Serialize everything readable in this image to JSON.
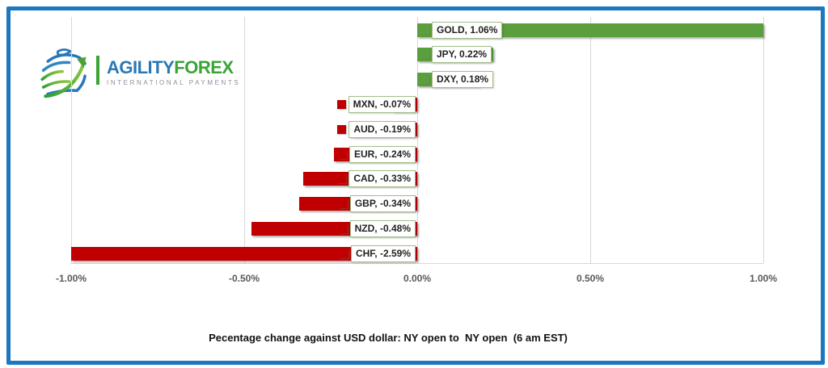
{
  "logo": {
    "brand_primary": "AGILITY",
    "brand_secondary": "FOREX",
    "tagline": "INTERNATIONAL PAYMENTS",
    "colors": {
      "blue": "#2878b5",
      "green": "#3aa435",
      "gray": "#8a9199"
    }
  },
  "chart_data": {
    "type": "bar",
    "orientation": "horizontal",
    "categories": [
      "GOLD",
      "JPY",
      "DXY",
      "MXN",
      "AUD",
      "EUR",
      "CAD",
      "GBP",
      "NZD",
      "CHF"
    ],
    "values": [
      1.06,
      0.22,
      0.18,
      -0.07,
      -0.19,
      -0.24,
      -0.33,
      -0.34,
      -0.48,
      -2.59
    ],
    "labels": [
      "GOLD, 1.06%",
      "JPY, 0.22%",
      "DXY, 0.18%",
      "MXN, -0.07%",
      "AUD, -0.19%",
      "EUR, -0.24%",
      "CAD, -0.33%",
      "GBP, -0.34%",
      "NZD, -0.48%",
      "CHF, -2.59%"
    ],
    "positive_color": "#5a9e3d",
    "negative_color": "#c00000",
    "label_border_color": "#a3bd8a",
    "xlim": [
      -1.0,
      1.0
    ],
    "x_ticks": [
      -1.0,
      -0.5,
      0,
      0.5,
      1.0
    ],
    "x_tick_labels": [
      "-1.00%",
      "-0.50%",
      "0.00%",
      "0.50%",
      "1.00%"
    ],
    "grid": true,
    "legend_position": "none",
    "title": "Pecentage change against USD dollar: NY open to  NY open  (6 am EST)"
  },
  "caption": "Pecentage change against USD dollar: NY open to  NY open  (6 am EST)",
  "frame_color": "#1b77c0"
}
